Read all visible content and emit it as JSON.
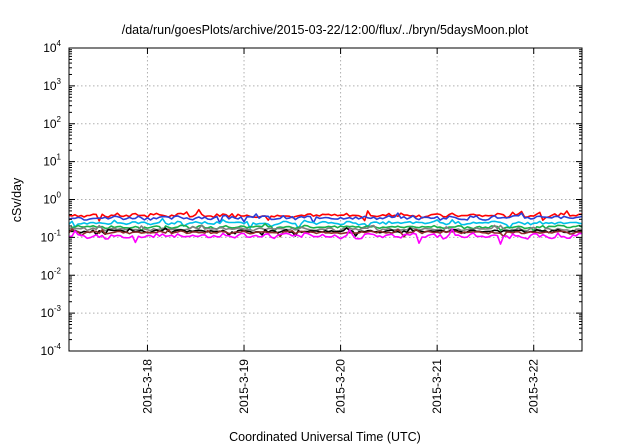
{
  "chart_data": {
    "type": "line",
    "title": "/data/run/goesPlots/archive/2015-03-22/12:00/flux/../bryn/5daysMoon.plot",
    "xlabel": "Coordinated Universal Time (UTC)",
    "ylabel": "cSv/day",
    "x_range": [
      "2015-03-17T04:30",
      "2015-03-22T12:00"
    ],
    "xticks": [
      {
        "label": "2015-3-18",
        "date": "2015-03-18T00:00"
      },
      {
        "label": "2015-3-19",
        "date": "2015-03-19T00:00"
      },
      {
        "label": "2015-3-20",
        "date": "2015-03-20T00:00"
      },
      {
        "label": "2015-3-21",
        "date": "2015-03-21T00:00"
      },
      {
        "label": "2015-3-22",
        "date": "2015-03-22T00:00"
      }
    ],
    "y_scale": "log",
    "ylim": [
      0.0001,
      10000
    ],
    "yticks": [
      {
        "base": "10",
        "exp": "-4"
      },
      {
        "base": "10",
        "exp": "-3"
      },
      {
        "base": "10",
        "exp": "-2"
      },
      {
        "base": "10",
        "exp": "-1"
      },
      {
        "base": "10",
        "exp": "0"
      },
      {
        "base": "10",
        "exp": "1"
      },
      {
        "base": "10",
        "exp": "2"
      },
      {
        "base": "10",
        "exp": "3"
      },
      {
        "base": "10",
        "exp": "4"
      }
    ],
    "grid": true,
    "series": [
      {
        "color": "#ff0000",
        "level": 0.38,
        "jitter": 0.1
      },
      {
        "color": "#2a3fd6",
        "level": 0.33,
        "jitter": 0.1
      },
      {
        "color": "#00bfe8",
        "level": 0.24,
        "jitter": 0.08
      },
      {
        "color": "#19b04a",
        "level": 0.19,
        "jitter": 0.07
      },
      {
        "color": "#7f7f7f",
        "level": 0.165,
        "jitter": 0.07
      },
      {
        "color": "#000000",
        "level": 0.145,
        "jitter": 0.07
      },
      {
        "color": "#8b2a2a",
        "level": 0.135,
        "jitter": 0.07
      },
      {
        "color": "#ff00ff",
        "level": 0.11,
        "jitter": 0.13
      }
    ]
  }
}
